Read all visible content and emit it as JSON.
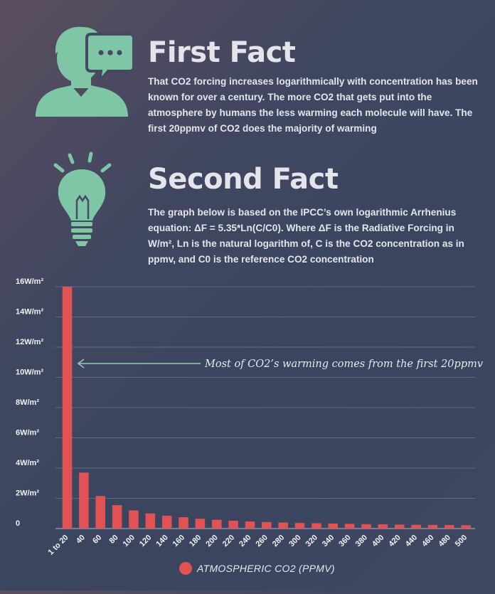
{
  "facts": [
    {
      "title": "First Fact",
      "icon": "person-speech-icon",
      "body": "That CO2 forcing increases logarithmically with concentration has been known for over a century. The more CO2 that gets put into the atmosphere by humans the less warming each molecule will have. The first 20ppmv of CO2 does the majority of warming"
    },
    {
      "title": "Second Fact",
      "icon": "lightbulb-icon",
      "body": "The graph below is based on the IPCC’s own logarithmic Arrhenius equation: ΔF = 5.35*Ln(C/C0). Where ΔF is the Radiative Forcing in W/m², Ln is the natural logarithm of, C is the CO2 concentration as in ppmv, and C0 is the reference CO2 concentration"
    }
  ],
  "colors": {
    "icon": "#7fc6a6",
    "bar": "#e05254",
    "annotation_line": "#8fcfb0"
  },
  "chart_data": {
    "type": "bar",
    "categories": [
      "1 to 20",
      "40",
      "60",
      "80",
      "100",
      "120",
      "140",
      "160",
      "180",
      "200",
      "220",
      "240",
      "260",
      "280",
      "300",
      "320",
      "340",
      "360",
      "380",
      "400",
      "420",
      "440",
      "460",
      "480",
      "500"
    ],
    "series": [
      {
        "name": "ATMOSPHERIC CO2 (PPMV)",
        "values": [
          16.0,
          3.7,
          2.15,
          1.55,
          1.2,
          1.0,
          0.85,
          0.75,
          0.65,
          0.58,
          0.52,
          0.47,
          0.43,
          0.4,
          0.37,
          0.35,
          0.33,
          0.31,
          0.29,
          0.28,
          0.26,
          0.25,
          0.24,
          0.23,
          0.22
        ]
      }
    ],
    "y_ticks": [
      {
        "value": 0,
        "label": "0"
      },
      {
        "value": 2,
        "label": "2W/m²"
      },
      {
        "value": 4,
        "label": "4W/m²"
      },
      {
        "value": 6,
        "label": "6W/m²"
      },
      {
        "value": 8,
        "label": "8W/m²"
      },
      {
        "value": 10,
        "label": "10W/m²"
      },
      {
        "value": 12,
        "label": "12W/m²"
      },
      {
        "value": 14,
        "label": "14W/m²"
      },
      {
        "value": 16,
        "label": "16W/m²"
      }
    ],
    "ylim": [
      0,
      16
    ],
    "grid": true,
    "legend": "bottom-center",
    "annotation": "Most of CO2’s warming comes from the first 20ppmv"
  }
}
